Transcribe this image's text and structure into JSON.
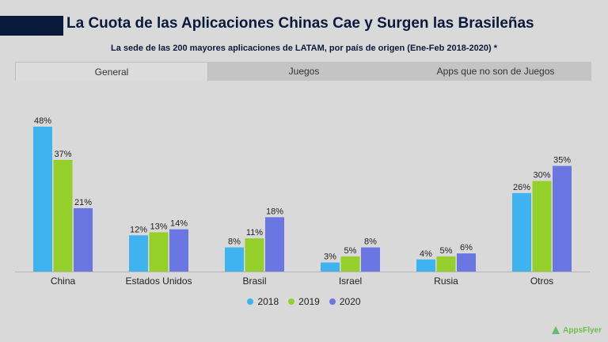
{
  "header": {
    "title": "La Cuota de las Aplicaciones Chinas Cae y Surgen las Brasileñas",
    "subtitle": "La sede de las 200 mayores aplicaciones de LATAM, por país de origen (Ene-Feb 2018-2020) *"
  },
  "tabs": [
    {
      "label": "General",
      "active": true
    },
    {
      "label": "Juegos",
      "active": false
    },
    {
      "label": "Apps que no son de Juegos",
      "active": false
    }
  ],
  "chart_data": {
    "type": "bar",
    "categories": [
      "China",
      "Estados Unidos",
      "Brasil",
      "Israel",
      "Rusia",
      "Otros"
    ],
    "series": [
      {
        "name": "2018",
        "color": "#3fb2f0",
        "values": [
          48,
          12,
          8,
          3,
          4,
          26
        ]
      },
      {
        "name": "2019",
        "color": "#95cf2a",
        "values": [
          37,
          13,
          11,
          5,
          5,
          30
        ]
      },
      {
        "name": "2020",
        "color": "#6a76e2",
        "values": [
          21,
          14,
          18,
          8,
          6,
          35
        ]
      }
    ],
    "value_suffix": "%",
    "ylim": [
      0,
      48
    ],
    "legend_position": "bottom",
    "grid": false
  },
  "logo": {
    "text": "AppsFlyer",
    "color": "#6cc04a"
  }
}
